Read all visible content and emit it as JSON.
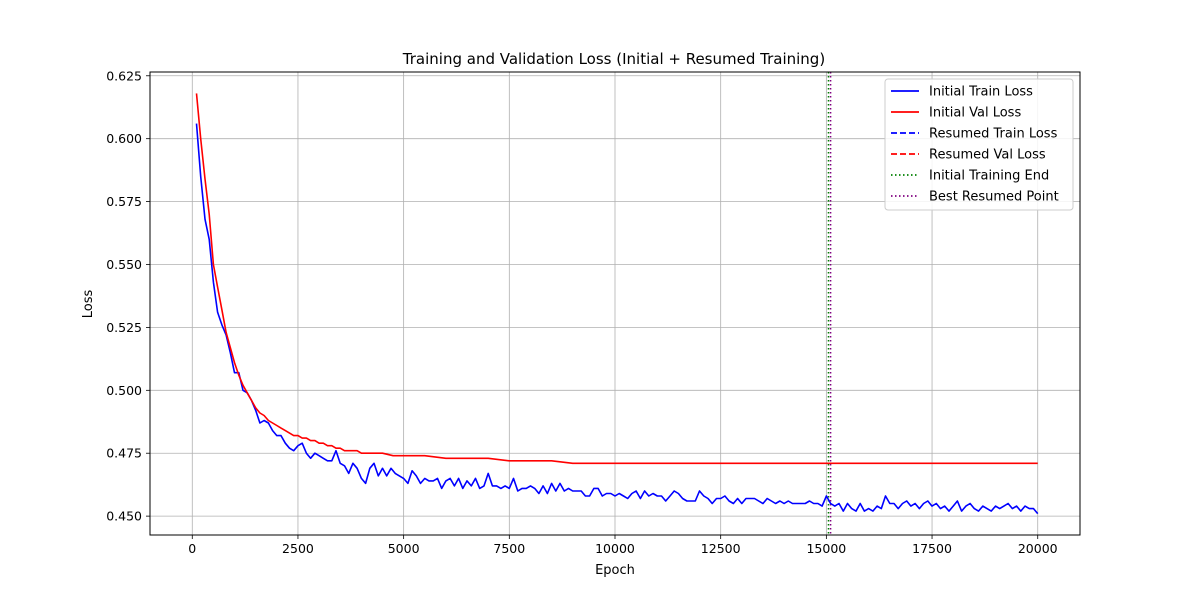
{
  "chart_data": {
    "type": "line",
    "title": "Training and Validation Loss (Initial + Resumed Training)",
    "xlabel": "Epoch",
    "ylabel": "Loss",
    "xlim": [
      -1000,
      21000
    ],
    "ylim": [
      0.4425,
      0.6265
    ],
    "xticks": [
      0,
      2500,
      5000,
      7500,
      10000,
      12500,
      15000,
      17500,
      20000
    ],
    "yticks": [
      0.45,
      0.475,
      0.5,
      0.525,
      0.55,
      0.575,
      0.6,
      0.625
    ],
    "xtick_labels": [
      "0",
      "2500",
      "5000",
      "7500",
      "10000",
      "12500",
      "15000",
      "17500",
      "20000"
    ],
    "ytick_labels": [
      "0.450",
      "0.475",
      "0.500",
      "0.525",
      "0.550",
      "0.575",
      "0.600",
      "0.625"
    ],
    "grid": true,
    "legend_position": "top-right",
    "legend": [
      {
        "label": "Initial Train Loss",
        "color": "#0000ff",
        "style": "solid"
      },
      {
        "label": "Initial Val Loss",
        "color": "#ff0000",
        "style": "solid"
      },
      {
        "label": "Resumed Train Loss",
        "color": "#0000ff",
        "style": "dashed"
      },
      {
        "label": "Resumed Val Loss",
        "color": "#ff0000",
        "style": "dashed"
      },
      {
        "label": "Initial Training End",
        "color": "#008000",
        "style": "dotted"
      },
      {
        "label": "Best Resumed Point",
        "color": "#800080",
        "style": "dotted"
      }
    ],
    "vlines": [
      {
        "name": "Initial Training End",
        "x": 15050,
        "color": "#008000"
      },
      {
        "name": "Best Resumed Point",
        "x": 15100,
        "color": "#800080"
      }
    ],
    "series": [
      {
        "name": "Initial Train Loss",
        "color": "#0000ff",
        "style": "solid",
        "x": [
          100,
          200,
          300,
          400,
          500,
          600,
          700,
          800,
          900,
          1000,
          1100,
          1200,
          1300,
          1400,
          1500,
          1600,
          1700,
          1800,
          1900,
          2000,
          2100,
          2200,
          2300,
          2400,
          2500,
          2600,
          2700,
          2800,
          2900,
          3000,
          3100,
          3200,
          3300,
          3400,
          3500,
          3600,
          3700,
          3800,
          3900,
          4000,
          4100,
          4200,
          4300,
          4400,
          4500,
          4600,
          4700,
          4800,
          4900,
          5000,
          5100,
          5200,
          5300,
          5400,
          5500,
          5600,
          5700,
          5800,
          5900,
          6000,
          6100,
          6200,
          6300,
          6400,
          6500,
          6600,
          6700,
          6800,
          6900,
          7000,
          7100,
          7200,
          7300,
          7400,
          7500,
          7600,
          7700,
          7800,
          7900,
          8000,
          8100,
          8200,
          8300,
          8400,
          8500,
          8600,
          8700,
          8800,
          8900,
          9000,
          9100,
          9200,
          9300,
          9400,
          9500,
          9600,
          9700,
          9800,
          9900,
          10000,
          10100,
          10200,
          10300,
          10400,
          10500,
          10600,
          10700,
          10800,
          10900,
          11000,
          11100,
          11200,
          11300,
          11400,
          11500,
          11600,
          11700,
          11800,
          11900,
          12000,
          12100,
          12200,
          12300,
          12400,
          12500,
          12600,
          12700,
          12800,
          12900,
          13000,
          13100,
          13200,
          13300,
          13400,
          13500,
          13600,
          13700,
          13800,
          13900,
          14000,
          14100,
          14200,
          14300,
          14400,
          14500,
          14600,
          14700,
          14800,
          14900,
          15000,
          15100,
          15200,
          15300,
          15400,
          15500,
          15600,
          15700,
          15800,
          15900,
          16000,
          16100,
          16200,
          16300,
          16400,
          16500,
          16600,
          16700,
          16800,
          16900,
          17000,
          17100,
          17200,
          17300,
          17400,
          17500,
          17600,
          17700,
          17800,
          17900,
          18000,
          18100,
          18200,
          18300,
          18400,
          18500,
          18600,
          18700,
          18800,
          18900,
          19000,
          19100,
          19200,
          19300,
          19400,
          19500,
          19600,
          19700,
          19800,
          19900,
          20000
        ],
        "y": [
          0.606,
          0.585,
          0.568,
          0.56,
          0.543,
          0.531,
          0.526,
          0.522,
          0.515,
          0.507,
          0.507,
          0.5,
          0.499,
          0.496,
          0.492,
          0.487,
          0.488,
          0.487,
          0.484,
          0.482,
          0.482,
          0.479,
          0.477,
          0.476,
          0.478,
          0.479,
          0.475,
          0.473,
          0.475,
          0.474,
          0.473,
          0.472,
          0.472,
          0.476,
          0.471,
          0.47,
          0.467,
          0.471,
          0.469,
          0.465,
          0.463,
          0.469,
          0.471,
          0.466,
          0.469,
          0.466,
          0.469,
          0.467,
          0.466,
          0.465,
          0.463,
          0.468,
          0.466,
          0.463,
          0.465,
          0.464,
          0.464,
          0.465,
          0.461,
          0.464,
          0.465,
          0.462,
          0.465,
          0.461,
          0.464,
          0.462,
          0.465,
          0.461,
          0.462,
          0.467,
          0.462,
          0.462,
          0.461,
          0.462,
          0.461,
          0.465,
          0.46,
          0.461,
          0.461,
          0.462,
          0.461,
          0.459,
          0.462,
          0.459,
          0.463,
          0.46,
          0.463,
          0.46,
          0.461,
          0.46,
          0.46,
          0.46,
          0.458,
          0.458,
          0.461,
          0.461,
          0.458,
          0.459,
          0.459,
          0.458,
          0.459,
          0.458,
          0.457,
          0.459,
          0.46,
          0.457,
          0.46,
          0.458,
          0.459,
          0.458,
          0.458,
          0.456,
          0.458,
          0.46,
          0.459,
          0.457,
          0.456,
          0.456,
          0.456,
          0.46,
          0.458,
          0.457,
          0.455,
          0.457,
          0.457,
          0.458,
          0.456,
          0.455,
          0.457,
          0.455,
          0.457,
          0.457,
          0.457,
          0.456,
          0.455,
          0.457,
          0.456,
          0.455,
          0.456,
          0.455,
          0.456,
          0.455,
          0.455,
          0.455,
          0.455,
          0.456,
          0.455,
          0.455,
          0.454,
          0.458,
          0.455,
          0.454,
          0.455,
          0.452,
          0.455,
          0.453,
          0.452,
          0.455,
          0.452,
          0.453,
          0.452,
          0.454,
          0.453,
          0.458,
          0.455,
          0.455,
          0.453,
          0.455,
          0.456,
          0.454,
          0.455,
          0.453,
          0.455,
          0.456,
          0.454,
          0.455,
          0.453,
          0.454,
          0.452,
          0.454,
          0.456,
          0.452,
          0.454,
          0.455,
          0.453,
          0.452,
          0.454,
          0.453,
          0.452,
          0.454,
          0.453,
          0.454,
          0.455,
          0.453,
          0.454,
          0.452,
          0.454,
          0.453,
          0.453,
          0.451
        ]
      },
      {
        "name": "Initial Val Loss",
        "color": "#ff0000",
        "style": "solid",
        "x": [
          100,
          200,
          300,
          400,
          500,
          600,
          700,
          800,
          900,
          1000,
          1100,
          1200,
          1300,
          1400,
          1500,
          1600,
          1700,
          1800,
          1900,
          2000,
          2100,
          2200,
          2300,
          2400,
          2500,
          2600,
          2700,
          2800,
          2900,
          3000,
          3100,
          3200,
          3300,
          3400,
          3500,
          3600,
          3700,
          3800,
          3900,
          4000,
          4250,
          4500,
          4750,
          5000,
          5500,
          6000,
          6500,
          7000,
          7500,
          8000,
          8500,
          9000,
          9500,
          10000,
          10500,
          11000,
          11500,
          12000,
          12500,
          13000,
          13500,
          14000,
          14500,
          15000,
          15500,
          16000,
          16500,
          17000,
          17500,
          18000,
          18500,
          19000,
          19500,
          20000
        ],
        "y": [
          0.618,
          0.6,
          0.584,
          0.57,
          0.55,
          0.541,
          0.532,
          0.523,
          0.517,
          0.511,
          0.506,
          0.502,
          0.499,
          0.496,
          0.493,
          0.491,
          0.49,
          0.488,
          0.487,
          0.486,
          0.485,
          0.484,
          0.483,
          0.482,
          0.482,
          0.481,
          0.481,
          0.48,
          0.48,
          0.479,
          0.479,
          0.478,
          0.478,
          0.477,
          0.477,
          0.476,
          0.476,
          0.476,
          0.476,
          0.475,
          0.475,
          0.475,
          0.474,
          0.474,
          0.474,
          0.473,
          0.473,
          0.473,
          0.472,
          0.472,
          0.472,
          0.471,
          0.471,
          0.471,
          0.471,
          0.471,
          0.471,
          0.471,
          0.471,
          0.471,
          0.471,
          0.471,
          0.471,
          0.471,
          0.471,
          0.471,
          0.471,
          0.471,
          0.471,
          0.471,
          0.471,
          0.471,
          0.471,
          0.471
        ]
      }
    ]
  }
}
